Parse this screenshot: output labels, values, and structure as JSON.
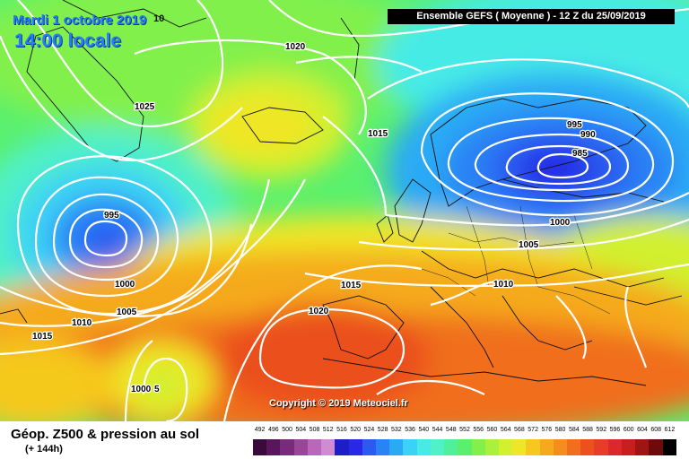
{
  "title": {
    "line1": "Mardi 1 octobre 2019",
    "line2": "14:00 locale",
    "stub": "10"
  },
  "header": {
    "label": "Ensemble GEFS  ( Moyenne )  -  12 Z du 25/09/2019"
  },
  "copyright": "Copyright © 2019 Meteociel.fr",
  "footer": {
    "title": "Géop. Z500 & pression au sol",
    "subtitle": "(+ 144h)"
  },
  "legend": {
    "labels": [
      "492",
      "496",
      "500",
      "504",
      "508",
      "512",
      "516",
      "520",
      "524",
      "528",
      "532",
      "536",
      "540",
      "544",
      "548",
      "552",
      "556",
      "560",
      "564",
      "568",
      "572",
      "576",
      "580",
      "584",
      "588",
      "592",
      "596",
      "600",
      "604",
      "608",
      "612"
    ],
    "colors": [
      "#3a0a3a",
      "#5a165a",
      "#7a2a7a",
      "#9a449a",
      "#ba66ba",
      "#d28ad2",
      "#1e1ec8",
      "#2828e6",
      "#2a5af0",
      "#2a82f5",
      "#2aaaf5",
      "#3cd2f5",
      "#46ebe6",
      "#50f0c8",
      "#50f09b",
      "#5af06e",
      "#82f04b",
      "#aaf03c",
      "#d2f02d",
      "#f0e628",
      "#f5c81e",
      "#f5aa1e",
      "#f58c1e",
      "#f06e1e",
      "#eb501e",
      "#e63c28",
      "#dc2828",
      "#c81e1e",
      "#a01414",
      "#6e0a0a",
      "#000000"
    ]
  },
  "isobars": [
    {
      "label": "1020",
      "region": "north-atlantic"
    },
    {
      "label": "1025",
      "region": "greenland-iceland"
    },
    {
      "label": "1015",
      "region": "north-sea"
    },
    {
      "label": "995",
      "region": "scandinavia-low"
    },
    {
      "label": "990",
      "region": "scandinavia-low"
    },
    {
      "label": "985",
      "region": "scandinavia-low"
    },
    {
      "label": "1000",
      "region": "baltic"
    },
    {
      "label": "1005",
      "region": "central-europe"
    },
    {
      "label": "1010",
      "region": "balkans"
    },
    {
      "label": "995",
      "region": "atlantic-low"
    },
    {
      "label": "1000",
      "region": "atlantic-low"
    },
    {
      "label": "1005",
      "region": "mid-atlantic"
    },
    {
      "label": "1010",
      "region": "west-atlantic"
    },
    {
      "label": "1015",
      "region": "west-atlantic"
    },
    {
      "label": "1015",
      "region": "bay-of-biscay"
    },
    {
      "label": "1020",
      "region": "azores-high"
    },
    {
      "label": "1000",
      "region": "south-atlantic-low"
    },
    {
      "label": "5",
      "region": "south-atlantic-low"
    }
  ]
}
